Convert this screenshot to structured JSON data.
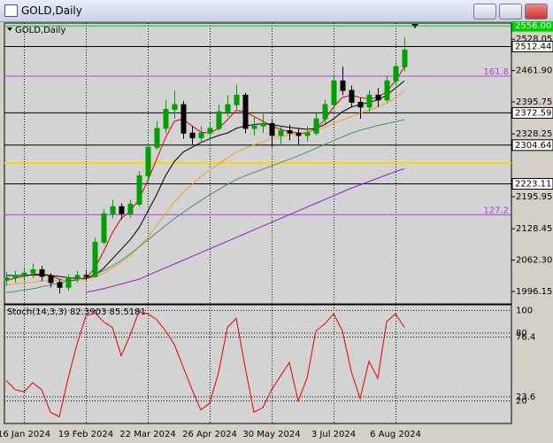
{
  "window": {
    "title": "GOLD,Daily"
  },
  "chart_data": [
    {
      "type": "candlestick",
      "title": "GOLD,Daily",
      "categories": [
        null,
        null,
        "16 Jan 2024",
        null,
        null,
        null,
        null,
        null,
        null,
        "19 Feb 2024",
        null,
        null,
        null,
        null,
        null,
        null,
        "22 Mar 2024",
        null,
        null,
        null,
        null,
        null,
        null,
        "26 Apr 2024",
        null,
        null,
        null,
        null,
        null,
        null,
        "30 May 2024",
        null,
        null,
        null,
        null,
        null,
        null,
        "3 Jul 2024",
        null,
        null,
        null,
        null,
        null,
        null,
        "6 Aug 2024",
        null
      ],
      "open": [
        2020,
        2025,
        2030,
        2035,
        2042,
        2028,
        2015,
        2005,
        2025,
        2030,
        2028,
        2100,
        2160,
        2175,
        2160,
        2180,
        2240,
        2300,
        2340,
        2380,
        2390,
        2330,
        2320,
        2330,
        2340,
        2375,
        2390,
        2410,
        2340,
        2345,
        2350,
        2325,
        2335,
        2330,
        2325,
        2330,
        2360,
        2390,
        2440,
        2420,
        2395,
        2385,
        2410,
        2400,
        2440,
        2470
      ],
      "high": [
        2038,
        2040,
        2046,
        2055,
        2050,
        2035,
        2022,
        2032,
        2040,
        2042,
        2110,
        2170,
        2190,
        2182,
        2190,
        2250,
        2310,
        2355,
        2400,
        2420,
        2398,
        2345,
        2345,
        2355,
        2390,
        2410,
        2432,
        2415,
        2365,
        2370,
        2358,
        2345,
        2348,
        2340,
        2345,
        2372,
        2400,
        2452,
        2470,
        2430,
        2405,
        2420,
        2425,
        2450,
        2480,
        2532
      ],
      "low": [
        2008,
        2015,
        2020,
        2025,
        2018,
        2005,
        1992,
        1998,
        2015,
        2020,
        2025,
        2095,
        2150,
        2148,
        2152,
        2175,
        2232,
        2295,
        2330,
        2360,
        2318,
        2305,
        2310,
        2320,
        2335,
        2365,
        2380,
        2330,
        2325,
        2330,
        2300,
        2305,
        2315,
        2305,
        2312,
        2325,
        2350,
        2385,
        2410,
        2385,
        2360,
        2375,
        2385,
        2395,
        2430,
        2460
      ],
      "close": [
        2025,
        2030,
        2035,
        2042,
        2028,
        2015,
        2005,
        2025,
        2030,
        2028,
        2100,
        2160,
        2175,
        2160,
        2180,
        2240,
        2300,
        2340,
        2380,
        2390,
        2330,
        2320,
        2330,
        2340,
        2375,
        2390,
        2410,
        2340,
        2345,
        2350,
        2325,
        2335,
        2330,
        2325,
        2330,
        2360,
        2390,
        2440,
        2420,
        2395,
        2385,
        2410,
        2400,
        2440,
        2470,
        2505
      ],
      "up_color": "#00a000",
      "down_color": "#000000",
      "series": [
        {
          "color": "#e00000",
          "values": [
            2020,
            2024,
            2028,
            2032,
            2033,
            2030,
            2022,
            2018,
            2020,
            2024,
            2045,
            2080,
            2120,
            2150,
            2165,
            2190,
            2230,
            2275,
            2320,
            2355,
            2360,
            2345,
            2332,
            2330,
            2340,
            2358,
            2378,
            2375,
            2365,
            2355,
            2345,
            2338,
            2333,
            2330,
            2330,
            2340,
            2358,
            2385,
            2405,
            2410,
            2405,
            2402,
            2405,
            2418,
            2440,
            2470
          ]
        },
        {
          "color": "#000000",
          "values": [
            2030,
            2030,
            2030,
            2031,
            2031,
            2030,
            2028,
            2025,
            2024,
            2024,
            2030,
            2045,
            2065,
            2085,
            2105,
            2130,
            2165,
            2200,
            2240,
            2270,
            2290,
            2300,
            2310,
            2318,
            2325,
            2330,
            2340,
            2345,
            2348,
            2350,
            2348,
            2345,
            2342,
            2340,
            2338,
            2340,
            2348,
            2360,
            2375,
            2385,
            2390,
            2395,
            2400,
            2410,
            2425,
            2440
          ]
        },
        {
          "color": "#f0a030",
          "values": [
            2010,
            2012,
            2014,
            2016,
            2018,
            2019,
            2020,
            2020,
            2021,
            2022,
            2026,
            2034,
            2045,
            2058,
            2072,
            2090,
            2110,
            2135,
            2160,
            2185,
            2205,
            2222,
            2238,
            2252,
            2265,
            2278,
            2290,
            2298,
            2305,
            2312,
            2318,
            2322,
            2326,
            2330,
            2333,
            2336,
            2342,
            2350,
            2358,
            2365,
            2372,
            2378,
            2385,
            2393,
            2405,
            2418
          ]
        },
        {
          "color": "#4a9070",
          "values": [
            1994,
            1996,
            1999,
            2002,
            2006,
            2010,
            2014,
            2018,
            2022,
            2026,
            2032,
            2040,
            2050,
            2062,
            2075,
            2090,
            2105,
            2120,
            2135,
            2150,
            2163,
            2176,
            2188,
            2200,
            2211,
            2222,
            2232,
            2240,
            2247,
            2254,
            2261,
            2268,
            2275,
            2282,
            2290,
            2298,
            2306,
            2314,
            2322,
            2330,
            2336,
            2341,
            2346,
            2350,
            2354,
            2358
          ]
        },
        {
          "color": "#9020d0",
          "values": [
            null,
            null,
            null,
            null,
            null,
            null,
            null,
            null,
            null,
            1994,
            1998,
            2002,
            2007,
            2012,
            2017,
            2022,
            2030,
            2038,
            2046,
            2054,
            2062,
            2070,
            2078,
            2086,
            2094,
            2102,
            2110,
            2118,
            2126,
            2134,
            2142,
            2150,
            2158,
            2166,
            2174,
            2182,
            2190,
            2198,
            2206,
            2214,
            2221,
            2228,
            2235,
            2242,
            2249,
            2255
          ]
        }
      ],
      "ylim": [
        1970,
        2562
      ],
      "yticks": [
        {
          "value": 2528.05,
          "label": "2528.05"
        },
        {
          "value": 2461.9,
          "label": "2461.90"
        },
        {
          "value": 2395.75,
          "label": "2395.75"
        },
        {
          "value": 2328.25,
          "label": "2328.25"
        },
        {
          "value": 2195.95,
          "label": "2195.95"
        },
        {
          "value": 2128.45,
          "label": "2128.45"
        },
        {
          "value": 2062.3,
          "label": "2062.30"
        },
        {
          "value": 1996.15,
          "label": "1996.15"
        }
      ],
      "levels": [
        {
          "value": 2556,
          "label": "2556.00",
          "color": "#00d000"
        },
        {
          "value": 2512.44,
          "label": "2512.44",
          "color": "#000000"
        },
        {
          "value": 2372.59,
          "label": "2372.59",
          "color": "#000000"
        },
        {
          "value": 2304.64,
          "label": "2304.64",
          "color": "#000000"
        },
        {
          "value": 2223.11,
          "label": "2223.11",
          "color": "#000000"
        },
        {
          "value": 2267,
          "color": "#ffd700"
        }
      ],
      "fib_levels": [
        {
          "value": 2450,
          "ratio": 161.8,
          "color": "#b040e0"
        },
        {
          "value": 2158,
          "ratio": 127.2,
          "color": "#b040e0"
        }
      ]
    },
    {
      "type": "line",
      "title": "Stoch(14,3,3) 82.3903 85.5181",
      "series": [
        {
          "color": "#e00000",
          "values": [
            38,
            30,
            28,
            36,
            30,
            10,
            6,
            40,
            70,
            95,
            98,
            90,
            85,
            60,
            78,
            99,
            97,
            92,
            82,
            70,
            50,
            30,
            12,
            18,
            45,
            85,
            93,
            50,
            10,
            14,
            30,
            42,
            54,
            20,
            40,
            82,
            88,
            97,
            82,
            46,
            22,
            55,
            40,
            90,
            97,
            85
          ]
        }
      ],
      "ylim": [
        0,
        105
      ],
      "yticks": [
        100,
        80,
        76.4,
        23.6,
        20
      ]
    }
  ]
}
